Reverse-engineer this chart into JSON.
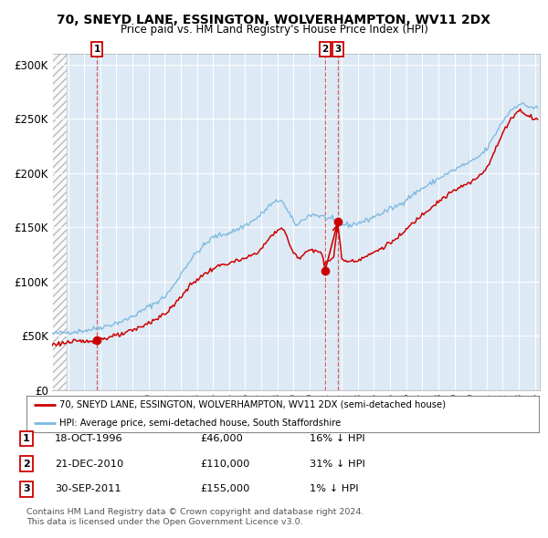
{
  "title": "70, SNEYD LANE, ESSINGTON, WOLVERHAMPTON, WV11 2DX",
  "subtitle": "Price paid vs. HM Land Registry's House Price Index (HPI)",
  "ylim": [
    0,
    310000
  ],
  "yticks": [
    0,
    50000,
    100000,
    150000,
    200000,
    250000,
    300000
  ],
  "ytick_labels": [
    "£0",
    "£50K",
    "£100K",
    "£150K",
    "£200K",
    "£250K",
    "£300K"
  ],
  "hpi_color": "#7ab8e0",
  "price_color": "#cc0000",
  "bg_color": "#ddeaf5",
  "sale_year_vals": [
    1996.79,
    2010.96,
    2011.75
  ],
  "sale_prices": [
    46000,
    110000,
    155000
  ],
  "sale_labels": [
    "1",
    "2",
    "3"
  ],
  "legend_line1": "70, SNEYD LANE, ESSINGTON, WOLVERHAMPTON, WV11 2DX (semi-detached house)",
  "legend_line2": "HPI: Average price, semi-detached house, South Staffordshire",
  "table_rows": [
    {
      "num": "1",
      "date": "18-OCT-1996",
      "price": "£46,000",
      "change": "16% ↓ HPI"
    },
    {
      "num": "2",
      "date": "21-DEC-2010",
      "price": "£110,000",
      "change": "31% ↓ HPI"
    },
    {
      "num": "3",
      "date": "30-SEP-2011",
      "price": "£155,000",
      "change": "1% ↓ HPI"
    }
  ],
  "footnote1": "Contains HM Land Registry data © Crown copyright and database right 2024.",
  "footnote2": "This data is licensed under the Open Government Licence v3.0."
}
